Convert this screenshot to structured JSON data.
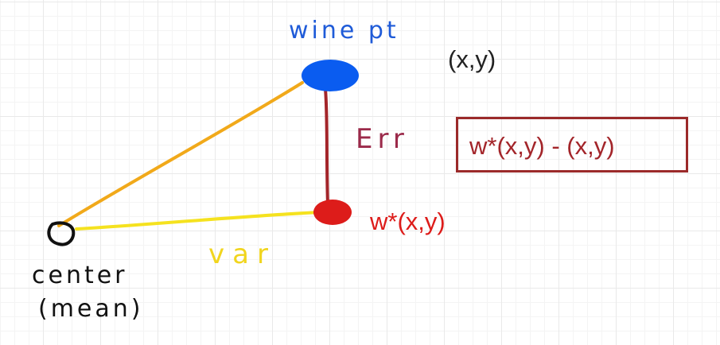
{
  "labels": {
    "wine_pt": "wine pt",
    "coords": "(x,y)",
    "err": "Err",
    "err_formula": "w*(x,y) - (x,y)",
    "weighted_point": "w*(x,y)",
    "var": "var",
    "center": "center",
    "mean": "(mean)"
  },
  "colors": {
    "wine_point": "#0a5cf0",
    "weighted_point": "#dd1c1a",
    "err_line": "#a3252a",
    "orange_line": "#f1a91a",
    "yellow_line": "#f5e21f",
    "center_outline": "#111111",
    "wine_text": "#1f5bd8",
    "err_text": "#9b2a4a",
    "err_box_text": "#a3252a",
    "weighted_text": "#dd1c1a",
    "var_text": "#f1d51e",
    "center_text": "#111111",
    "coords_text": "#222222",
    "err_box_border": "#9b2a2a"
  }
}
